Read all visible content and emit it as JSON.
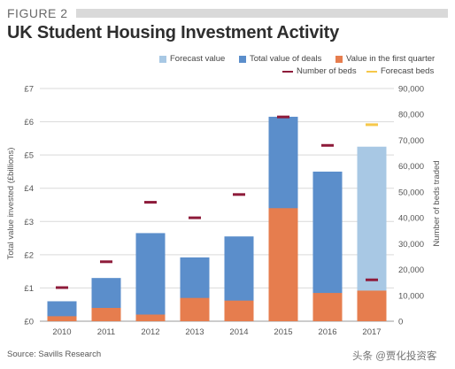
{
  "figure_label": "FIGURE 2",
  "title": "UK Student Housing Investment Activity",
  "source": "Source: Savills Research",
  "watermark": "头条 @贾化投资客",
  "colors": {
    "forecast_value": "#a8c8e4",
    "total_value": "#5b8ecb",
    "first_quarter": "#e67d4e",
    "beds": "#8e1b3a",
    "forecast_beds": "#f6c84a",
    "grid": "#d9d9d9",
    "axis_text": "#555555"
  },
  "legend": {
    "forecast_value": "Forecast value",
    "total_value": "Total value of deals",
    "first_quarter": "Value in the first quarter",
    "beds": "Number of beds",
    "forecast_beds": "Forecast beds"
  },
  "chart_data": {
    "type": "bar",
    "title": "UK Student Housing Investment Activity",
    "categories": [
      "2010",
      "2011",
      "2012",
      "2013",
      "2014",
      "2015",
      "2016",
      "2017"
    ],
    "ylabel": "Total value invested (£billions)",
    "ylabel_right": "Number of beds traded",
    "ylim": [
      0,
      7
    ],
    "ylim_right": [
      0,
      90000
    ],
    "y_ticks": [
      "£0",
      "£1",
      "£2",
      "£3",
      "£4",
      "£5",
      "£6",
      "£7"
    ],
    "y_ticks_right": [
      "0",
      "10,000",
      "20,000",
      "30,000",
      "40,000",
      "50,000",
      "60,000",
      "70,000",
      "80,000",
      "90,000"
    ],
    "grid": true,
    "series": [
      {
        "name": "Total value of deals",
        "type": "bar",
        "values": [
          0.6,
          1.3,
          2.65,
          1.92,
          2.55,
          6.15,
          4.5,
          null
        ]
      },
      {
        "name": "Forecast value",
        "type": "bar",
        "values": [
          null,
          null,
          null,
          null,
          null,
          null,
          null,
          5.25
        ]
      },
      {
        "name": "Value in the first quarter",
        "type": "bar",
        "values": [
          0.15,
          0.4,
          0.2,
          0.7,
          0.62,
          3.4,
          0.85,
          0.92
        ]
      },
      {
        "name": "Number of beds",
        "type": "marker",
        "axis": "right",
        "values": [
          13000,
          23000,
          46000,
          40000,
          49000,
          79000,
          68000,
          16000
        ]
      },
      {
        "name": "Forecast beds",
        "type": "marker",
        "axis": "right",
        "values": [
          null,
          null,
          null,
          null,
          null,
          null,
          null,
          76000
        ]
      }
    ]
  }
}
